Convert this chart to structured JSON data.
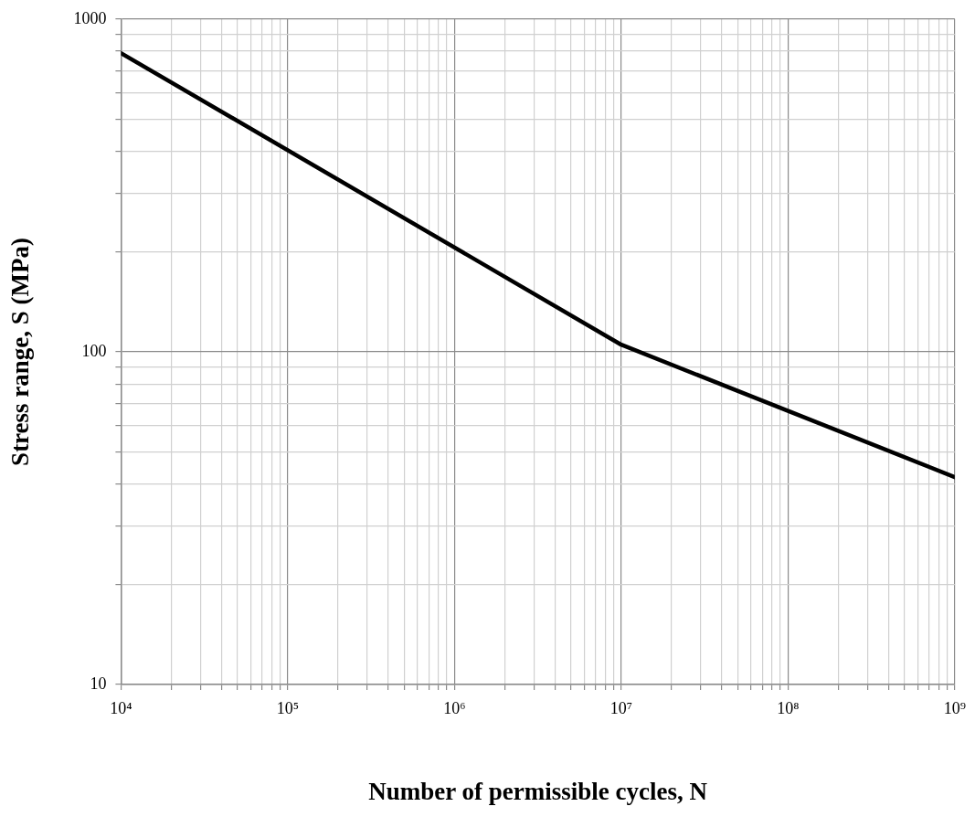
{
  "chart_data": {
    "type": "line",
    "xlabel": "Number of permissible cycles, N",
    "ylabel": "Stress range, S (MPa)",
    "log": "xy",
    "grid": true,
    "legend": false,
    "marker": "none",
    "line_style": "solid",
    "x": [
      10000,
      10000000,
      1000000000
    ],
    "series": [
      {
        "color": "#000000",
        "values": [
          790,
          105,
          42
        ]
      }
    ],
    "xlim": [
      10000,
      1000000000
    ],
    "ylim": [
      10,
      1000
    ],
    "xticks": [
      {
        "value": 10000,
        "label": "10⁴"
      },
      {
        "value": 20000,
        "label": null
      },
      {
        "value": 30000,
        "label": null
      },
      {
        "value": 40000,
        "label": null
      },
      {
        "value": 50000,
        "label": null
      },
      {
        "value": 60000,
        "label": null
      },
      {
        "value": 70000,
        "label": null
      },
      {
        "value": 80000,
        "label": null
      },
      {
        "value": 90000,
        "label": null
      },
      {
        "value": 100000,
        "label": "10⁵"
      },
      {
        "value": 200000,
        "label": null
      },
      {
        "value": 300000,
        "label": null
      },
      {
        "value": 400000,
        "label": null
      },
      {
        "value": 500000,
        "label": null
      },
      {
        "value": 600000,
        "label": null
      },
      {
        "value": 700000,
        "label": null
      },
      {
        "value": 800000,
        "label": null
      },
      {
        "value": 900000,
        "label": null
      },
      {
        "value": 1000000,
        "label": "10⁶"
      },
      {
        "value": 2000000,
        "label": null
      },
      {
        "value": 3000000,
        "label": null
      },
      {
        "value": 4000000,
        "label": null
      },
      {
        "value": 5000000,
        "label": null
      },
      {
        "value": 6000000,
        "label": null
      },
      {
        "value": 7000000,
        "label": null
      },
      {
        "value": 8000000,
        "label": null
      },
      {
        "value": 9000000,
        "label": null
      },
      {
        "value": 10000000,
        "label": "10⁷"
      },
      {
        "value": 20000000,
        "label": null
      },
      {
        "value": 30000000,
        "label": null
      },
      {
        "value": 40000000,
        "label": null
      },
      {
        "value": 50000000,
        "label": null
      },
      {
        "value": 60000000,
        "label": null
      },
      {
        "value": 70000000,
        "label": null
      },
      {
        "value": 80000000,
        "label": null
      },
      {
        "value": 90000000,
        "label": null
      },
      {
        "value": 100000000,
        "label": "10⁸"
      },
      {
        "value": 200000000,
        "label": null
      },
      {
        "value": 300000000,
        "label": null
      },
      {
        "value": 400000000,
        "label": null
      },
      {
        "value": 500000000,
        "label": null
      },
      {
        "value": 600000000,
        "label": null
      },
      {
        "value": 700000000,
        "label": null
      },
      {
        "value": 800000000,
        "label": null
      },
      {
        "value": 900000000,
        "label": null
      },
      {
        "value": 1000000000,
        "label": "10⁹"
      }
    ],
    "yticks": [
      10,
      {
        "value": 20,
        "label": null
      },
      {
        "value": 30,
        "label": null
      },
      {
        "value": 40,
        "label": null
      },
      {
        "value": 50,
        "label": null
      },
      {
        "value": 60,
        "label": null
      },
      {
        "value": 70,
        "label": null
      },
      {
        "value": 80,
        "label": null
      },
      {
        "value": 90,
        "label": null
      },
      100,
      {
        "value": 200,
        "label": null
      },
      {
        "value": 300,
        "label": null
      },
      {
        "value": 400,
        "label": null
      },
      {
        "value": 500,
        "label": null
      },
      {
        "value": 600,
        "label": null
      },
      {
        "value": 700,
        "label": null
      },
      {
        "value": 800,
        "label": null
      },
      {
        "value": 900,
        "label": null
      },
      1000
    ]
  }
}
